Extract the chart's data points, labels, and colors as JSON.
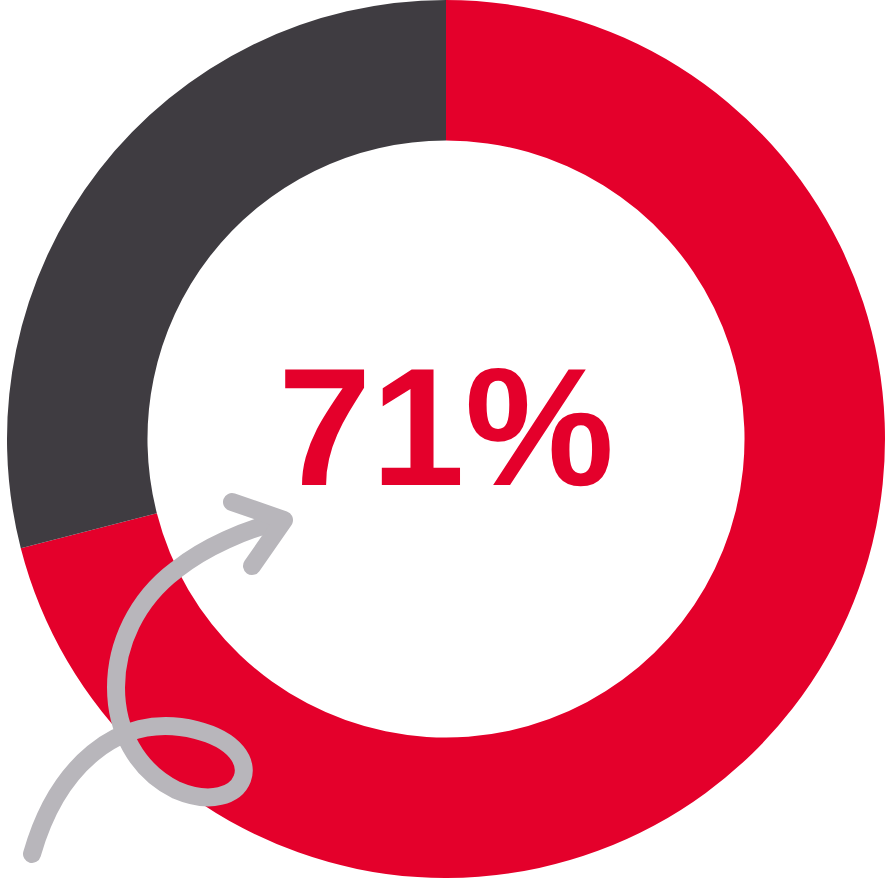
{
  "chart_data": {
    "type": "donut",
    "categories": [
      null,
      null
    ],
    "values": [
      71,
      29
    ],
    "colors": [
      "#e4002b",
      "#3f3c41"
    ],
    "annotations": [
      "71%"
    ],
    "legend": false
  }
}
